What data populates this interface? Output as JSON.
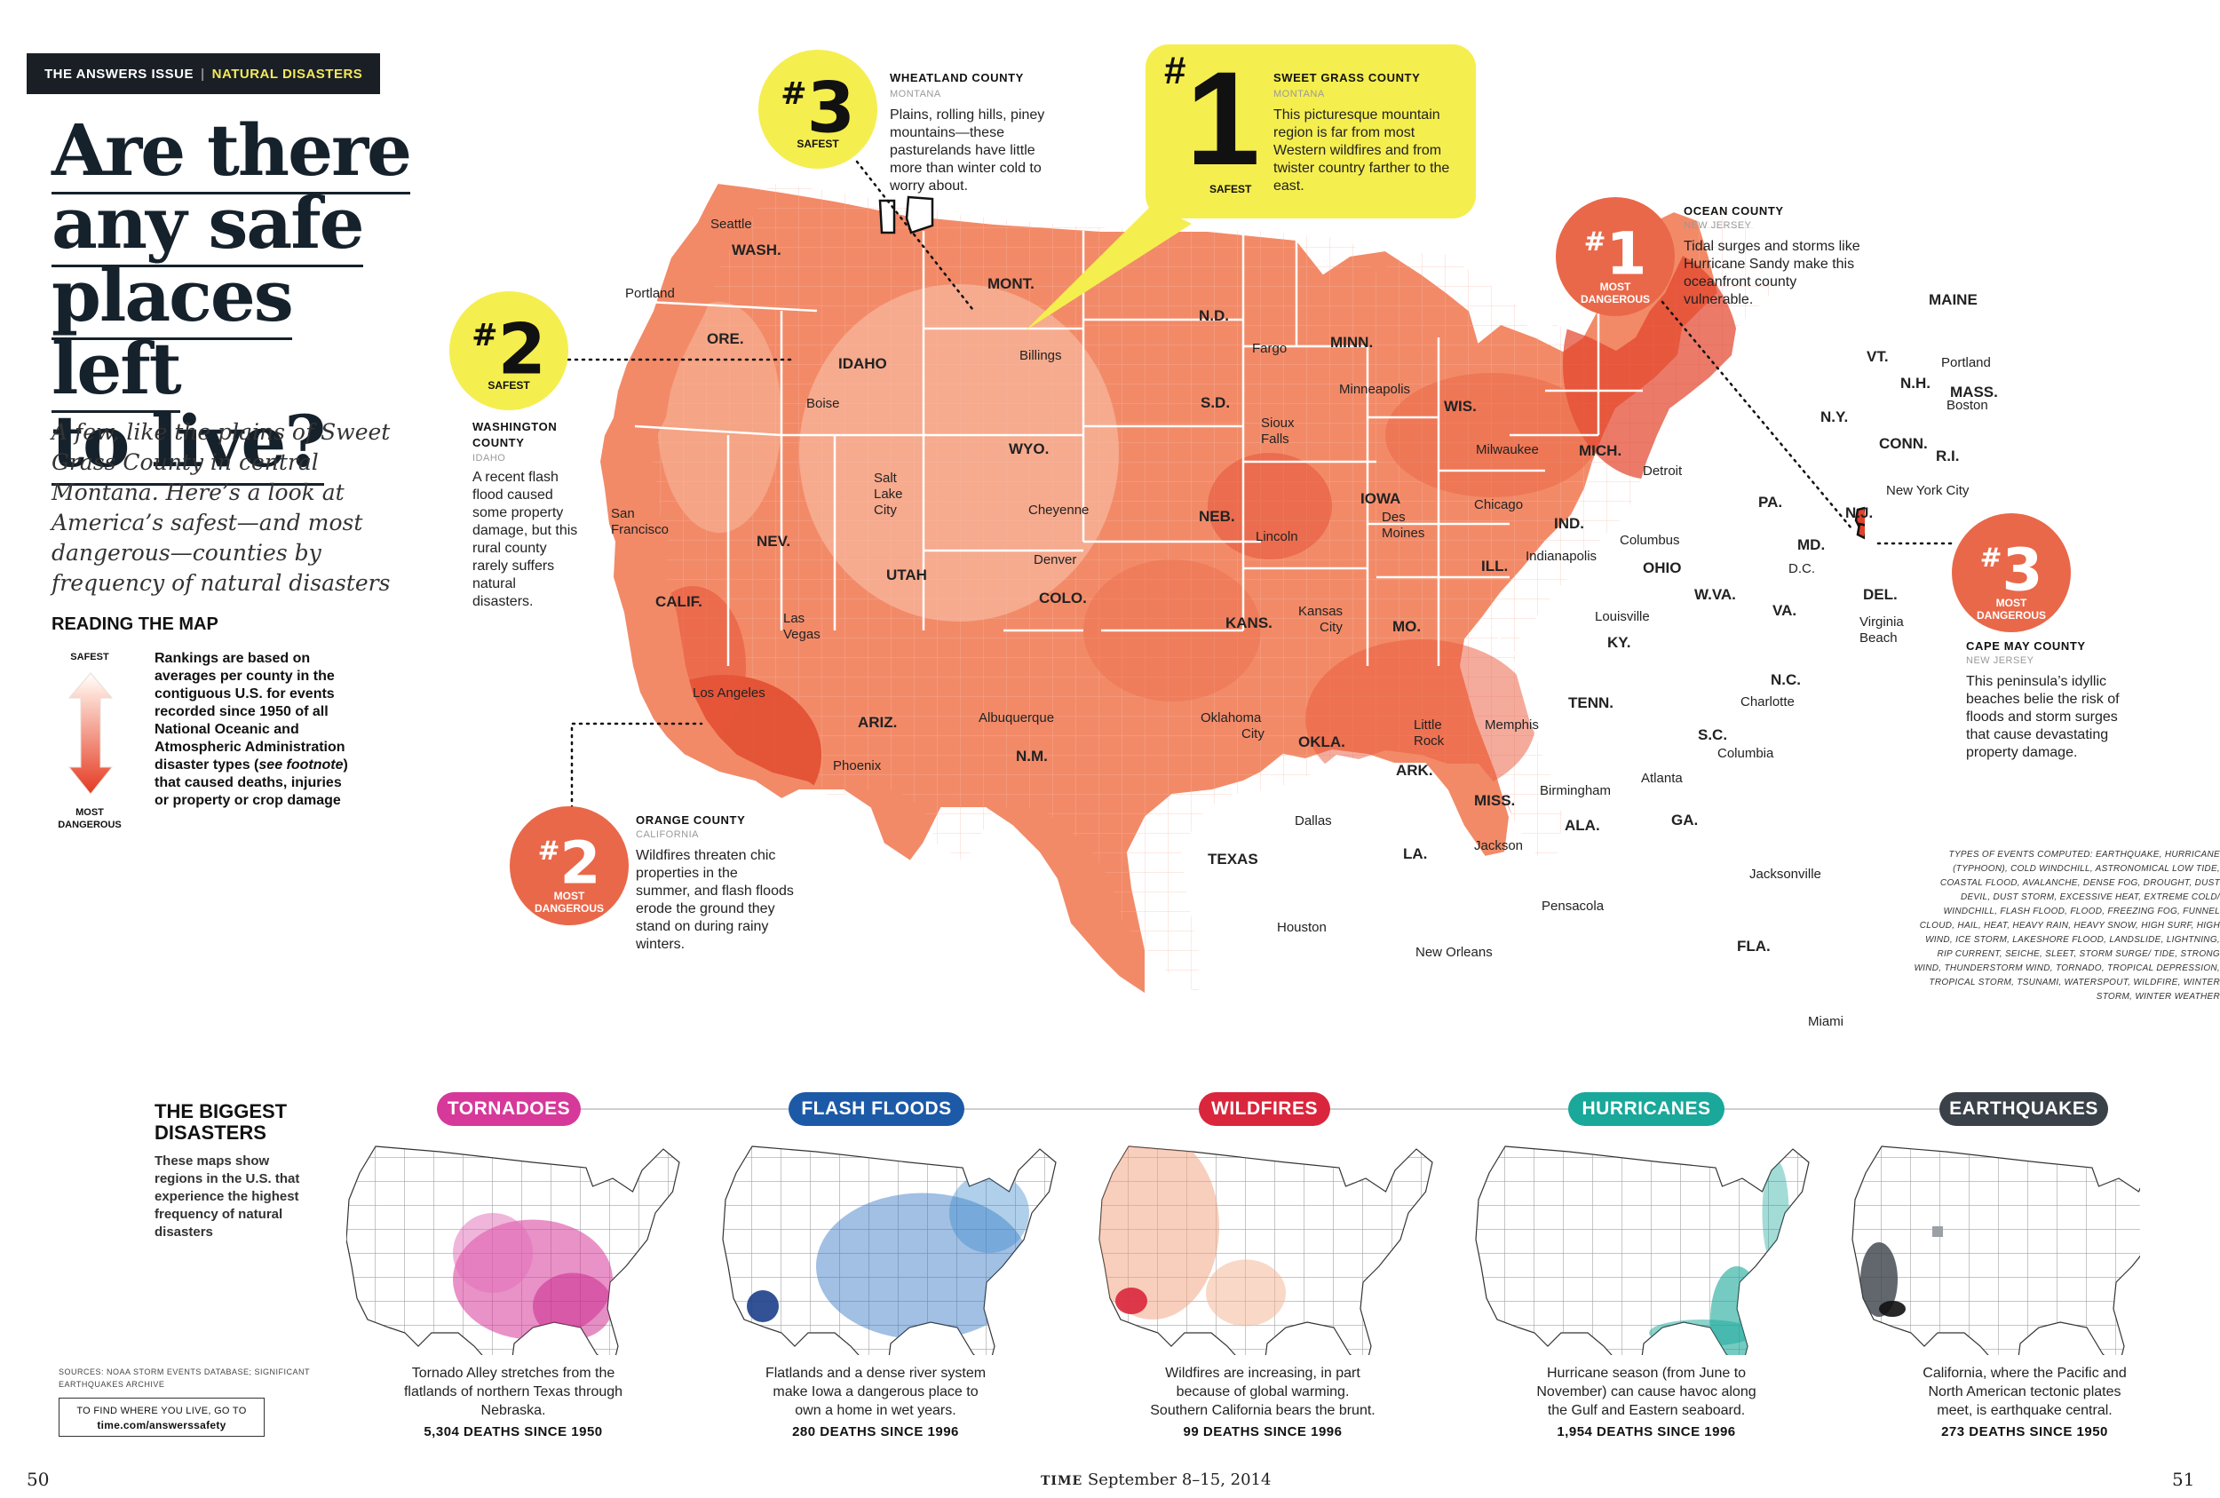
{
  "kicker": {
    "section": "THE ANSWERS ISSUE",
    "separator": "|",
    "topic": "NATURAL DISASTERS"
  },
  "headline": {
    "line1": "Are there",
    "line2": "any safe",
    "line3": "places left",
    "line4": "to live?"
  },
  "dek": "A few, like the plains of Sweet Grass County in central Montana. Here’s a look at America’s safest—and most dangerous—counties by frequency of natural disasters",
  "reading_map": {
    "title": "READING THE MAP",
    "safest_label": "SAFEST",
    "dangerous_label_1": "MOST",
    "dangerous_label_2": "DANGEROUS",
    "text_a": "Rankings are based on averages per county in the contiguous U.S. for events recorded since 1950 of all National Oceanic and Atmospheric Administration disaster types (",
    "text_italic": "see footnote",
    "text_b": ") that caused deaths, injuries or property or crop damage"
  },
  "colors": {
    "safe_yellow": "#f5ee4f",
    "danger_red": "#e9684a",
    "map_base": "#f28a68",
    "map_dark": "#e2472e",
    "map_light": "#f8c2a8",
    "tornado": "#d6399a",
    "flood": "#1c5aa8",
    "wildfire": "#d9263d",
    "hurricane": "#19a89a",
    "earthquake": "#3a4148"
  },
  "map": {
    "states": {
      "wash": "WASH.",
      "ore": "ORE.",
      "calif": "CALIF.",
      "idaho": "IDAHO",
      "nev": "NEV.",
      "utah": "UTAH",
      "ariz": "ARIZ.",
      "mont": "MONT.",
      "wyo": "WYO.",
      "colo": "COLO.",
      "nm": "N.M.",
      "nd": "N.D.",
      "sd": "S.D.",
      "neb": "NEB.",
      "kans": "KANS.",
      "okla": "OKLA.",
      "texas": "TEXAS",
      "minn": "MINN.",
      "iowa": "IOWA",
      "mo": "MO.",
      "ark": "ARK.",
      "la": "LA.",
      "wis": "WIS.",
      "ill": "ILL.",
      "mich": "MICH.",
      "ind": "IND.",
      "ohio": "OHIO",
      "ky": "KY.",
      "tenn": "TENN.",
      "miss": "MISS.",
      "ala": "ALA.",
      "ga": "GA.",
      "fla": "FLA.",
      "sc": "S.C.",
      "nc": "N.C.",
      "va": "VA.",
      "wva": "W.VA.",
      "pa": "PA.",
      "ny": "N.Y.",
      "vt": "VT.",
      "nh": "N.H.",
      "maine": "MAINE",
      "mass": "MASS.",
      "conn": "CONN.",
      "ri": "R.I.",
      "nj": "N.J.",
      "md": "MD.",
      "dc": "D.C.",
      "del": "DEL."
    },
    "cities": {
      "seattle": "Seattle",
      "portland_or": "Portland",
      "boise": "Boise",
      "billings": "Billings",
      "san_francisco_1": "San",
      "san_francisco_2": "Francisco",
      "salt_lake_1": "Salt",
      "salt_lake_2": "Lake",
      "salt_lake_3": "City",
      "las_vegas_1": "Las",
      "las_vegas_2": "Vegas",
      "los_angeles": "Los Angeles",
      "phoenix": "Phoenix",
      "cheyenne": "Cheyenne",
      "denver": "Denver",
      "albuquerque": "Albuquerque",
      "fargo": "Fargo",
      "sioux_falls_1": "Sioux",
      "sioux_falls_2": "Falls",
      "lincoln": "Lincoln",
      "kansas_city_1": "Kansas",
      "kansas_city_2": "City",
      "oklahoma_city_1": "Oklahoma",
      "oklahoma_city_2": "City",
      "dallas": "Dallas",
      "houston": "Houston",
      "minneapolis": "Minneapolis",
      "des_moines_1": "Des",
      "des_moines_2": "Moines",
      "little_rock_1": "Little",
      "little_rock_2": "Rock",
      "new_orleans": "New Orleans",
      "milwaukee": "Milwaukee",
      "chicago": "Chicago",
      "detroit": "Detroit",
      "indianapolis": "Indianapolis",
      "columbus": "Columbus",
      "louisville": "Louisville",
      "memphis": "Memphis",
      "birmingham": "Birmingham",
      "atlanta": "Atlanta",
      "jackson": "Jackson",
      "pensacola": "Pensacola",
      "jacksonville": "Jacksonville",
      "miami": "Miami",
      "charlotte": "Charlotte",
      "columbia": "Columbia",
      "virginia_beach_1": "Virginia",
      "virginia_beach_2": "Beach",
      "new_york": "New York City",
      "boston": "Boston",
      "portland_me": "Portland"
    }
  },
  "callouts": {
    "safe1": {
      "rank": "1",
      "hash": "#",
      "label": "SAFEST",
      "county": "SWEET GRASS COUNTY",
      "state": "MONTANA",
      "text": "This picturesque mountain region is far from most Western wildfires and from twister country farther to the east."
    },
    "safe2": {
      "rank": "2",
      "hash": "#",
      "label": "SAFEST",
      "county_1": "WASHINGTON",
      "county_2": "COUNTY",
      "state": "IDAHO",
      "text": "A recent flash flood caused some property damage, but this rural county rarely suffers natural disasters."
    },
    "safe3": {
      "rank": "3",
      "hash": "#",
      "label": "SAFEST",
      "county": "WHEATLAND COUNTY",
      "state": "MONTANA",
      "text": "Plains, rolling hills, piney mountains—these pasturelands have little more than winter cold to worry about."
    },
    "danger1": {
      "rank": "1",
      "hash": "#",
      "label_1": "MOST",
      "label_2": "DANGEROUS",
      "county": "OCEAN COUNTY",
      "state": "NEW JERSEY",
      "text": "Tidal surges and storms like Hurricane Sandy make this oceanfront county vulnerable."
    },
    "danger2": {
      "rank": "2",
      "hash": "#",
      "label_1": "MOST",
      "label_2": "DANGEROUS",
      "county": "ORANGE COUNTY",
      "state": "CALIFORNIA",
      "text": "Wildfires threaten chic properties in the summer, and flash floods erode the ground they stand on during rainy winters."
    },
    "danger3": {
      "rank": "3",
      "hash": "#",
      "label_1": "MOST",
      "label_2": "DANGEROUS",
      "county": "CAPE MAY COUNTY",
      "state": "NEW JERSEY",
      "text": "This peninsula’s idyllic beaches belie the risk of floods and storm surges that cause devastating property damage."
    }
  },
  "footnote": "TYPES OF EVENTS COMPUTED: EARTHQUAKE, HURRICANE (TYPHOON), COLD WINDCHILL, ASTRONOMICAL LOW TIDE, COASTAL FLOOD, AVALANCHE, DENSE FOG, DROUGHT, DUST DEVIL, DUST STORM, EXCESSIVE HEAT, EXTREME COLD/ WINDCHILL, FLASH FLOOD, FLOOD, FREEZING FOG, FUNNEL CLOUD, HAIL, HEAT, HEAVY RAIN, HEAVY SNOW, HIGH SURF, HIGH WIND, ICE STORM, LAKESHORE FLOOD, LANDSLIDE, LIGHTNING, RIP CURRENT, SEICHE, SLEET, STORM SURGE/ TIDE, STRONG WIND, THUNDERSTORM WIND, TORNADO, TROPICAL DEPRESSION, TROPICAL STORM, TSUNAMI, WATERSPOUT, WILDFIRE, WINTER STORM, WINTER WEATHER",
  "biggest": {
    "title_1": "THE BIGGEST",
    "title_2": "DISASTERS",
    "text": "These maps show regions in the U.S. that experience the highest frequency of natural disasters",
    "items": [
      {
        "label": "TORNADOES",
        "caption": "Tornado Alley stretches from the flatlands of northern Texas through Nebraska.",
        "deaths": "5,304 DEATHS SINCE 1950"
      },
      {
        "label": "FLASH FLOODS",
        "caption": "Flatlands and a dense river system make Iowa a dangerous place to own a home in wet years.",
        "deaths": "280 DEATHS SINCE 1996"
      },
      {
        "label": "WILDFIRES",
        "caption": "Wildfires are increasing, in part because of global warming. Southern California bears the brunt.",
        "deaths": "99 DEATHS SINCE 1996"
      },
      {
        "label": "HURRICANES",
        "caption": "Hurricane season (from June to November) can cause havoc along the Gulf and Eastern seaboard.",
        "deaths": "1,954 DEATHS SINCE 1996"
      },
      {
        "label": "EARTHQUAKES",
        "caption": "California, where the Pacific and North American tectonic plates meet, is earthquake central.",
        "deaths": "273 DEATHS SINCE 1950"
      }
    ]
  },
  "sources": "SOURCES: NOAA STORM EVENTS DATABASE; SIGNIFICANT EARTHQUAKES ARCHIVE",
  "find": {
    "line1": "TO FIND WHERE YOU LIVE, GO TO",
    "line2": "time.com/answerssafety"
  },
  "folio": {
    "left": "50",
    "right": "51",
    "brand": "TIME",
    "date": "September 8–15, 2014"
  }
}
